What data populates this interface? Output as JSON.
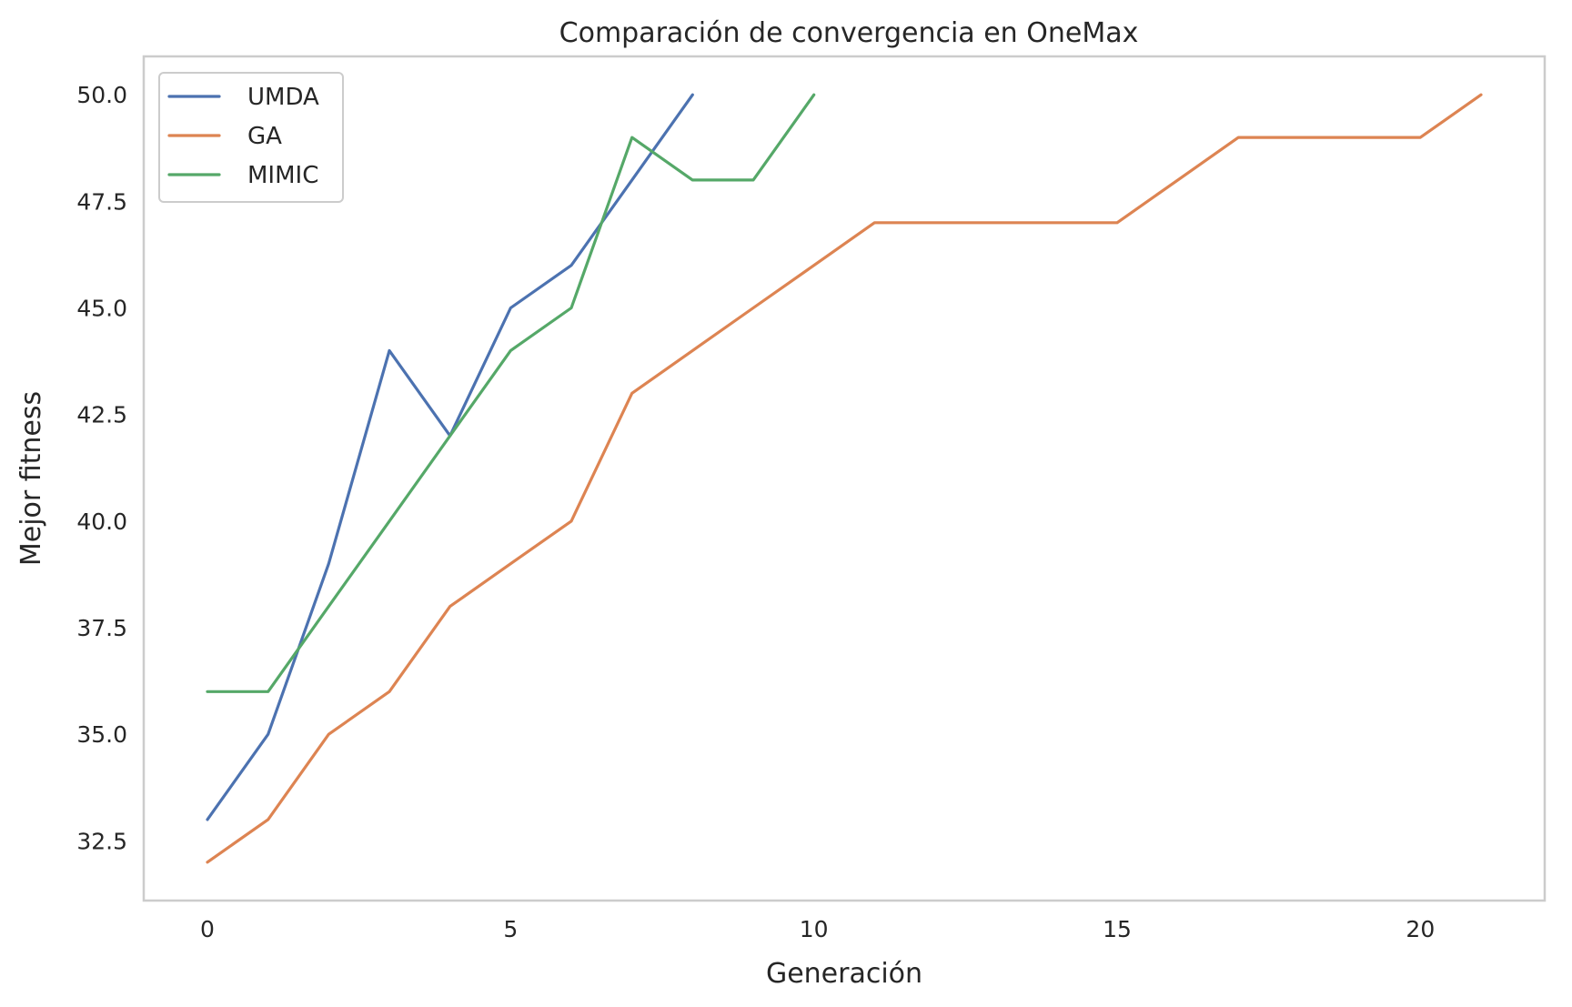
{
  "chart_data": {
    "type": "line",
    "title": "Comparación de convergencia en OneMax",
    "xlabel": "Generación",
    "ylabel": "Mejor fitness",
    "xlim": [
      -1.05,
      22.05
    ],
    "ylim": [
      31.1,
      50.9
    ],
    "xticks": [
      0,
      5,
      10,
      15,
      20
    ],
    "xtick_labels": [
      "0",
      "5",
      "10",
      "15",
      "20"
    ],
    "yticks": [
      32.5,
      35.0,
      37.5,
      40.0,
      42.5,
      45.0,
      47.5,
      50.0
    ],
    "ytick_labels": [
      "32.5",
      "35.0",
      "37.5",
      "40.0",
      "42.5",
      "45.0",
      "47.5",
      "50.0"
    ],
    "grid": false,
    "legend_position": "upper left",
    "series": [
      {
        "name": "UMDA",
        "color": "#4c72b0",
        "x": [
          0,
          1,
          2,
          3,
          4,
          5,
          6,
          7,
          8
        ],
        "values": [
          33,
          35,
          39,
          44,
          42,
          45,
          46,
          48,
          50
        ]
      },
      {
        "name": "GA",
        "color": "#dd8452",
        "x": [
          0,
          1,
          2,
          3,
          4,
          5,
          6,
          7,
          8,
          9,
          10,
          11,
          12,
          13,
          14,
          15,
          16,
          17,
          18,
          19,
          20,
          21
        ],
        "values": [
          32,
          33,
          35,
          36,
          38,
          39,
          40,
          43,
          44,
          45,
          46,
          47,
          47,
          47,
          47,
          47,
          48,
          49,
          49,
          49,
          49,
          50
        ]
      },
      {
        "name": "MIMIC",
        "color": "#55a868",
        "x": [
          0,
          1,
          2,
          3,
          4,
          5,
          6,
          7,
          8,
          9,
          10
        ],
        "values": [
          36,
          36,
          38,
          40,
          42,
          44,
          45,
          49,
          48,
          48,
          50
        ]
      }
    ]
  }
}
